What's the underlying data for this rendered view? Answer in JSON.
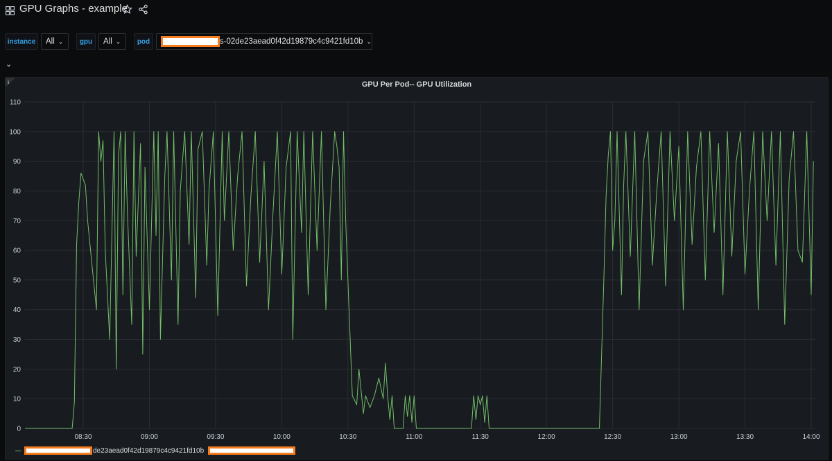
{
  "dashboard": {
    "title": "GPU Graphs - example",
    "icons": [
      "grid-icon",
      "star-icon",
      "share-icon"
    ]
  },
  "variables": [
    {
      "label": "instance",
      "value": "All"
    },
    {
      "label": "gpu",
      "value": "All"
    },
    {
      "label": "pod",
      "value": "s-02de23aead0f42d19879c4c9421fd10b"
    }
  ],
  "colors": {
    "background": "#0b0c0e",
    "panel": "#181b1f",
    "series": "#73bf69",
    "variable_label": "#33a2e5",
    "redaction_fill": "#ffffff",
    "redaction_border": "#f57c1f"
  },
  "panel": {
    "title": "GPU Per Pod-- GPU Utilization"
  },
  "legend": {
    "item_label": "de23aead0f42d19879c4c9421fd10b"
  },
  "chart_data": {
    "type": "line",
    "title": "GPU Per Pod-- GPU Utilization",
    "xlabel": "",
    "ylabel": "",
    "ylim": [
      0,
      110
    ],
    "yticks": [
      "0",
      "10",
      "20",
      "30",
      "40",
      "50",
      "60",
      "70",
      "80",
      "90",
      "100",
      "110"
    ],
    "xticks": [
      "08:30",
      "09:00",
      "09:30",
      "10:00",
      "10:30",
      "11:00",
      "11:30",
      "12:00",
      "12:30",
      "13:00",
      "13:30",
      "14:00"
    ],
    "grid": true,
    "legend_position": "bottom-left",
    "series": [
      {
        "color": "#73bf69",
        "points": [
          [
            "08:00",
            0
          ],
          [
            "08:25",
            0
          ],
          [
            "08:26",
            9
          ],
          [
            "08:27",
            62
          ],
          [
            "08:28",
            76
          ],
          [
            "08:29",
            86
          ],
          [
            "08:30",
            84
          ],
          [
            "08:31",
            82
          ],
          [
            "08:32",
            70
          ],
          [
            "08:34",
            55
          ],
          [
            "08:36",
            40
          ],
          [
            "08:37",
            100
          ],
          [
            "08:38",
            90
          ],
          [
            "08:39",
            97
          ],
          [
            "08:40",
            60
          ],
          [
            "08:42",
            30
          ],
          [
            "08:44",
            100
          ],
          [
            "08:45",
            20
          ],
          [
            "08:46",
            92
          ],
          [
            "08:47",
            100
          ],
          [
            "08:48",
            45
          ],
          [
            "08:49",
            100
          ],
          [
            "08:50",
            74
          ],
          [
            "08:52",
            35
          ],
          [
            "08:53",
            100
          ],
          [
            "08:54",
            58
          ],
          [
            "08:56",
            96
          ],
          [
            "08:57",
            25
          ],
          [
            "08:58",
            88
          ],
          [
            "09:00",
            40
          ],
          [
            "09:02",
            100
          ],
          [
            "09:03",
            65
          ],
          [
            "09:04",
            100
          ],
          [
            "09:05",
            30
          ],
          [
            "09:07",
            85
          ],
          [
            "09:08",
            100
          ],
          [
            "09:10",
            50
          ],
          [
            "09:11",
            100
          ],
          [
            "09:13",
            35
          ],
          [
            "09:14",
            80
          ],
          [
            "09:16",
            100
          ],
          [
            "09:18",
            62
          ],
          [
            "09:19",
            100
          ],
          [
            "09:21",
            44
          ],
          [
            "09:22",
            94
          ],
          [
            "09:24",
            100
          ],
          [
            "09:26",
            55
          ],
          [
            "09:27",
            80
          ],
          [
            "09:29",
            100
          ],
          [
            "09:31",
            38
          ],
          [
            "09:33",
            100
          ],
          [
            "09:34",
            70
          ],
          [
            "09:36",
            100
          ],
          [
            "09:38",
            60
          ],
          [
            "09:40",
            85
          ],
          [
            "09:42",
            100
          ],
          [
            "09:44",
            48
          ],
          [
            "09:46",
            78
          ],
          [
            "09:48",
            100
          ],
          [
            "09:50",
            56
          ],
          [
            "09:52",
            90
          ],
          [
            "09:54",
            40
          ],
          [
            "09:56",
            72
          ],
          [
            "09:58",
            100
          ],
          [
            "10:00",
            52
          ],
          [
            "10:02",
            88
          ],
          [
            "10:04",
            100
          ],
          [
            "10:05",
            30
          ],
          [
            "10:07",
            100
          ],
          [
            "10:09",
            66
          ],
          [
            "10:10",
            100
          ],
          [
            "10:12",
            45
          ],
          [
            "10:14",
            100
          ],
          [
            "10:16",
            60
          ],
          [
            "10:18",
            100
          ],
          [
            "10:20",
            40
          ],
          [
            "10:22",
            75
          ],
          [
            "10:24",
            100
          ],
          [
            "10:25",
            95
          ],
          [
            "10:26",
            88
          ],
          [
            "10:27",
            50
          ],
          [
            "10:28",
            100
          ],
          [
            "10:29",
            70
          ],
          [
            "10:30",
            50
          ],
          [
            "10:32",
            11
          ],
          [
            "10:34",
            8
          ],
          [
            "10:35",
            20
          ],
          [
            "10:37",
            5
          ],
          [
            "10:38",
            11
          ],
          [
            "10:40",
            7
          ],
          [
            "10:42",
            11
          ],
          [
            "10:44",
            17
          ],
          [
            "10:46",
            10
          ],
          [
            "10:47",
            22
          ],
          [
            "10:48",
            11
          ],
          [
            "10:49",
            3
          ],
          [
            "10:50",
            11
          ],
          [
            "10:51",
            0
          ],
          [
            "10:55",
            0
          ],
          [
            "10:56",
            11
          ],
          [
            "10:57",
            4
          ],
          [
            "10:58",
            11
          ],
          [
            "10:59",
            2
          ],
          [
            "11:00",
            11
          ],
          [
            "11:01",
            0
          ],
          [
            "11:26",
            0
          ],
          [
            "11:27",
            11
          ],
          [
            "11:28",
            3
          ],
          [
            "11:29",
            11
          ],
          [
            "11:30",
            8
          ],
          [
            "11:31",
            11
          ],
          [
            "11:32",
            2
          ],
          [
            "11:33",
            11
          ],
          [
            "11:34",
            0
          ],
          [
            "12:24",
            0
          ],
          [
            "12:25",
            25
          ],
          [
            "12:26",
            50
          ],
          [
            "12:27",
            78
          ],
          [
            "12:28",
            92
          ],
          [
            "12:29",
            100
          ],
          [
            "12:30",
            60
          ],
          [
            "12:31",
            70
          ],
          [
            "12:32",
            100
          ],
          [
            "12:34",
            45
          ],
          [
            "12:35",
            82
          ],
          [
            "12:36",
            100
          ],
          [
            "12:38",
            58
          ],
          [
            "12:40",
            100
          ],
          [
            "12:42",
            40
          ],
          [
            "12:44",
            90
          ],
          [
            "12:46",
            100
          ],
          [
            "12:48",
            55
          ],
          [
            "12:50",
            80
          ],
          [
            "12:52",
            100
          ],
          [
            "12:54",
            48
          ],
          [
            "12:56",
            100
          ],
          [
            "12:58",
            70
          ],
          [
            "13:00",
            95
          ],
          [
            "13:02",
            40
          ],
          [
            "13:04",
            100
          ],
          [
            "13:06",
            62
          ],
          [
            "13:08",
            88
          ],
          [
            "13:10",
            100
          ],
          [
            "13:12",
            50
          ],
          [
            "13:14",
            100
          ],
          [
            "13:16",
            66
          ],
          [
            "13:18",
            96
          ],
          [
            "13:20",
            45
          ],
          [
            "13:22",
            100
          ],
          [
            "13:24",
            58
          ],
          [
            "13:26",
            90
          ],
          [
            "13:28",
            100
          ],
          [
            "13:30",
            52
          ],
          [
            "13:32",
            80
          ],
          [
            "13:34",
            100
          ],
          [
            "13:36",
            40
          ],
          [
            "13:38",
            100
          ],
          [
            "13:40",
            70
          ],
          [
            "13:42",
            100
          ],
          [
            "13:44",
            55
          ],
          [
            "13:46",
            100
          ],
          [
            "13:48",
            35
          ],
          [
            "13:50",
            84
          ],
          [
            "13:52",
            100
          ],
          [
            "13:54",
            60
          ],
          [
            "13:56",
            56
          ],
          [
            "13:58",
            100
          ],
          [
            "14:00",
            45
          ],
          [
            "14:01",
            90
          ]
        ]
      }
    ]
  }
}
